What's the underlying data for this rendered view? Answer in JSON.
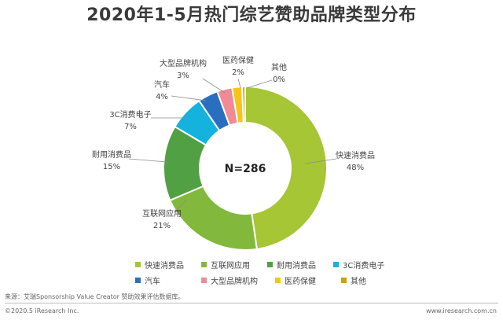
{
  "chart_data": {
    "type": "pie",
    "title": "2020年1-5月热门综艺赞助品牌类型分布",
    "center_label": "N=286",
    "legend_position": "bottom",
    "categories": [
      "快速消费品",
      "互联网应用",
      "耐用消费品",
      "3C消费电子",
      "汽车",
      "大型品牌机构",
      "医药保健",
      "其他"
    ],
    "values": [
      48,
      21,
      15,
      7,
      4,
      3,
      2,
      0
    ],
    "value_labels": [
      "48%",
      "21%",
      "15%",
      "7%",
      "4%",
      "3%",
      "2%",
      "0%"
    ],
    "colors": [
      "#a6c635",
      "#82b93c",
      "#52a044",
      "#13b3de",
      "#2a6fbf",
      "#f08a95",
      "#f5c518",
      "#c9a20e"
    ]
  },
  "footer": {
    "source": "来源：艾瑞Sponsorship Value Creator 赞助效果评估数据库。",
    "copyright": "©2020.5 iResearch Inc.",
    "website": "www.iresearch.com.cn"
  }
}
